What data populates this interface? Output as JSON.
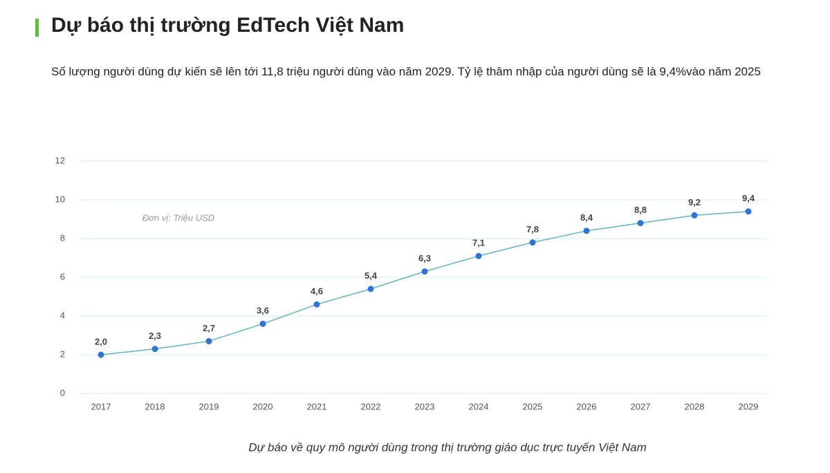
{
  "chart_data": {
    "type": "line",
    "title": "Dự báo thị trường EdTech Việt Nam",
    "subtitle": "Số lượng người dùng dự kiến sẽ lên tới 11,8 triệu người dùng vào năm 2029. Tỷ lệ thâm nhập của người dùng sẽ là 9,4%vào năm 2025",
    "annotation": "Đơn vị: Triệu USD",
    "caption": "Dự báo về quy mô người dùng trong thị trường giáo dục trực tuyến Việt Nam",
    "categories": [
      "2017",
      "2018",
      "2019",
      "2020",
      "2021",
      "2022",
      "2023",
      "2024",
      "2025",
      "2026",
      "2027",
      "2028",
      "2029"
    ],
    "values": [
      2.0,
      2.3,
      2.7,
      3.6,
      4.6,
      5.4,
      6.3,
      7.1,
      7.8,
      8.4,
      8.8,
      9.2,
      9.4
    ],
    "value_labels": [
      "2,0",
      "2,3",
      "2,7",
      "3,6",
      "4,6",
      "5,4",
      "6,3",
      "7,1",
      "7,8",
      "8,4",
      "8,8",
      "9,2",
      "9,4"
    ],
    "color": "#6ab7bf",
    "marker_color": "#2f74d6",
    "ylim": [
      0,
      12
    ],
    "yticks": [
      0,
      2,
      4,
      6,
      8,
      10,
      12
    ],
    "grid": true
  }
}
